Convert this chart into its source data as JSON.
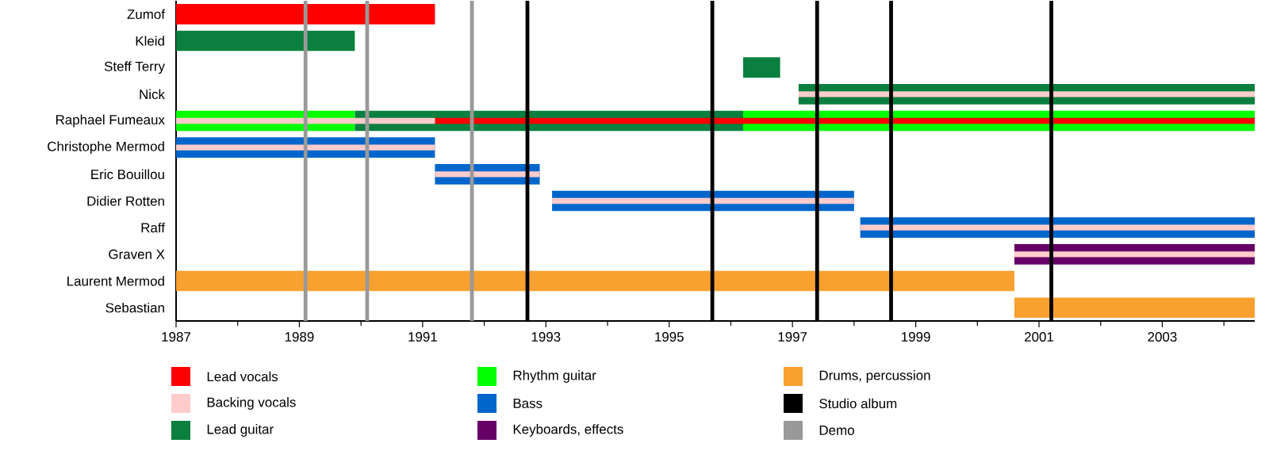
{
  "chart_data": {
    "type": "bar",
    "orientation": "horizontal",
    "categories": [
      "Zumof",
      "Kleid",
      "Steff Terry",
      "Nick",
      "Raphael Fumeaux",
      "Christophe Mermod",
      "Eric Bouillou",
      "Didier Rotten",
      "Raff",
      "Graven X",
      "Laurent Mermod",
      "Sebastian"
    ],
    "series": [
      {
        "name": "Lead vocals",
        "color": "#ff0000",
        "values": [
          4.2,
          null,
          null,
          null,
          13.3,
          null,
          null,
          null,
          null,
          null,
          null,
          null
        ],
        "base": [
          1987,
          null,
          null,
          null,
          1991.2,
          null,
          null,
          null,
          null,
          null,
          null,
          null
        ]
      },
      {
        "name": "Backing vocals",
        "color": "#ffcccc",
        "values": [
          null,
          null,
          null,
          7.4,
          4.2,
          4.2,
          1.7,
          4.9,
          6.4,
          3.9,
          null,
          null
        ],
        "base": [
          null,
          null,
          null,
          1997.1,
          1987,
          1987,
          1991.2,
          1993.1,
          1998.1,
          2000.6,
          null,
          null
        ]
      },
      {
        "name": "Lead guitar",
        "color": "#0a7f3f",
        "values": [
          null,
          2.9,
          0.6,
          7.4,
          6.3,
          null,
          null,
          null,
          null,
          null,
          null,
          null
        ],
        "base": [
          null,
          1987,
          1996.2,
          1997.1,
          1989.9,
          null,
          null,
          null,
          null,
          null,
          null,
          null
        ]
      },
      {
        "name": "Rhythm guitar",
        "color": "#00ff00",
        "values": [
          null,
          null,
          null,
          null,
          2.9,
          null,
          null,
          null,
          null,
          null,
          null,
          null
        ],
        "base": [
          null,
          null,
          null,
          null,
          1987,
          null,
          null,
          null,
          null,
          null,
          null,
          null
        ]
      },
      {
        "color": "#00ff00",
        "values": [
          null,
          null,
          null,
          null,
          8.3,
          null,
          null,
          null,
          null,
          null,
          null,
          null
        ],
        "base": [
          null,
          null,
          null,
          null,
          1996.2,
          null,
          null,
          null,
          null,
          null,
          null,
          null
        ]
      },
      {
        "name": "Bass",
        "color": "#0066cc",
        "values": [
          null,
          null,
          null,
          null,
          null,
          4.2,
          1.7,
          4.9,
          6.4,
          null,
          null,
          null
        ],
        "base": [
          null,
          null,
          null,
          null,
          null,
          1987,
          1991.2,
          1993.1,
          1998.1,
          null,
          null,
          null
        ]
      },
      {
        "name": "Keyboards, effects",
        "color": "#660066",
        "values": [
          null,
          null,
          null,
          null,
          null,
          null,
          null,
          null,
          null,
          3.9,
          null,
          null
        ],
        "base": [
          null,
          null,
          null,
          null,
          null,
          null,
          null,
          null,
          null,
          2000.6,
          null,
          null
        ]
      },
      {
        "name": "Drums, percussion",
        "color": "#f8a030",
        "values": [
          null,
          null,
          null,
          null,
          null,
          null,
          null,
          null,
          null,
          null,
          13.6,
          3.9
        ],
        "base": [
          null,
          null,
          null,
          null,
          null,
          null,
          null,
          null,
          null,
          null,
          1987,
          2000.6
        ]
      }
    ],
    "xlim": [
      1987,
      2004.5
    ],
    "xticks": [
      1987,
      {
        "value": 1988,
        "label": null
      },
      1989,
      {
        "value": 1990,
        "label": null
      },
      1991,
      {
        "value": 1992,
        "label": null
      },
      1993,
      {
        "value": 1994,
        "label": null
      },
      1995,
      {
        "value": 1996,
        "label": null
      },
      1997,
      {
        "value": 1998,
        "label": null
      },
      1999,
      {
        "value": 2000,
        "label": null
      },
      2001,
      {
        "value": 2002,
        "label": null
      },
      2003,
      {
        "value": 2004,
        "label": null
      }
    ],
    "ref_lines": [
      {
        "axis": "x",
        "value": 1992.7,
        "label": "Studio album",
        "color": "#000000"
      },
      {
        "axis": "x",
        "value": 1995.7,
        "color": "#000000"
      },
      {
        "axis": "x",
        "value": 1997.4,
        "color": "#000000"
      },
      {
        "axis": "x",
        "value": 1998.6,
        "color": "#000000"
      },
      {
        "axis": "x",
        "value": 2001.2,
        "color": "#000000"
      },
      {
        "axis": "x",
        "value": 1989.1,
        "label": "Demo",
        "color": "#999999"
      },
      {
        "axis": "x",
        "value": 1990.1,
        "color": "#999999"
      },
      {
        "axis": "x",
        "value": 1991.8,
        "color": "#999999"
      }
    ],
    "legend": "bottom"
  }
}
